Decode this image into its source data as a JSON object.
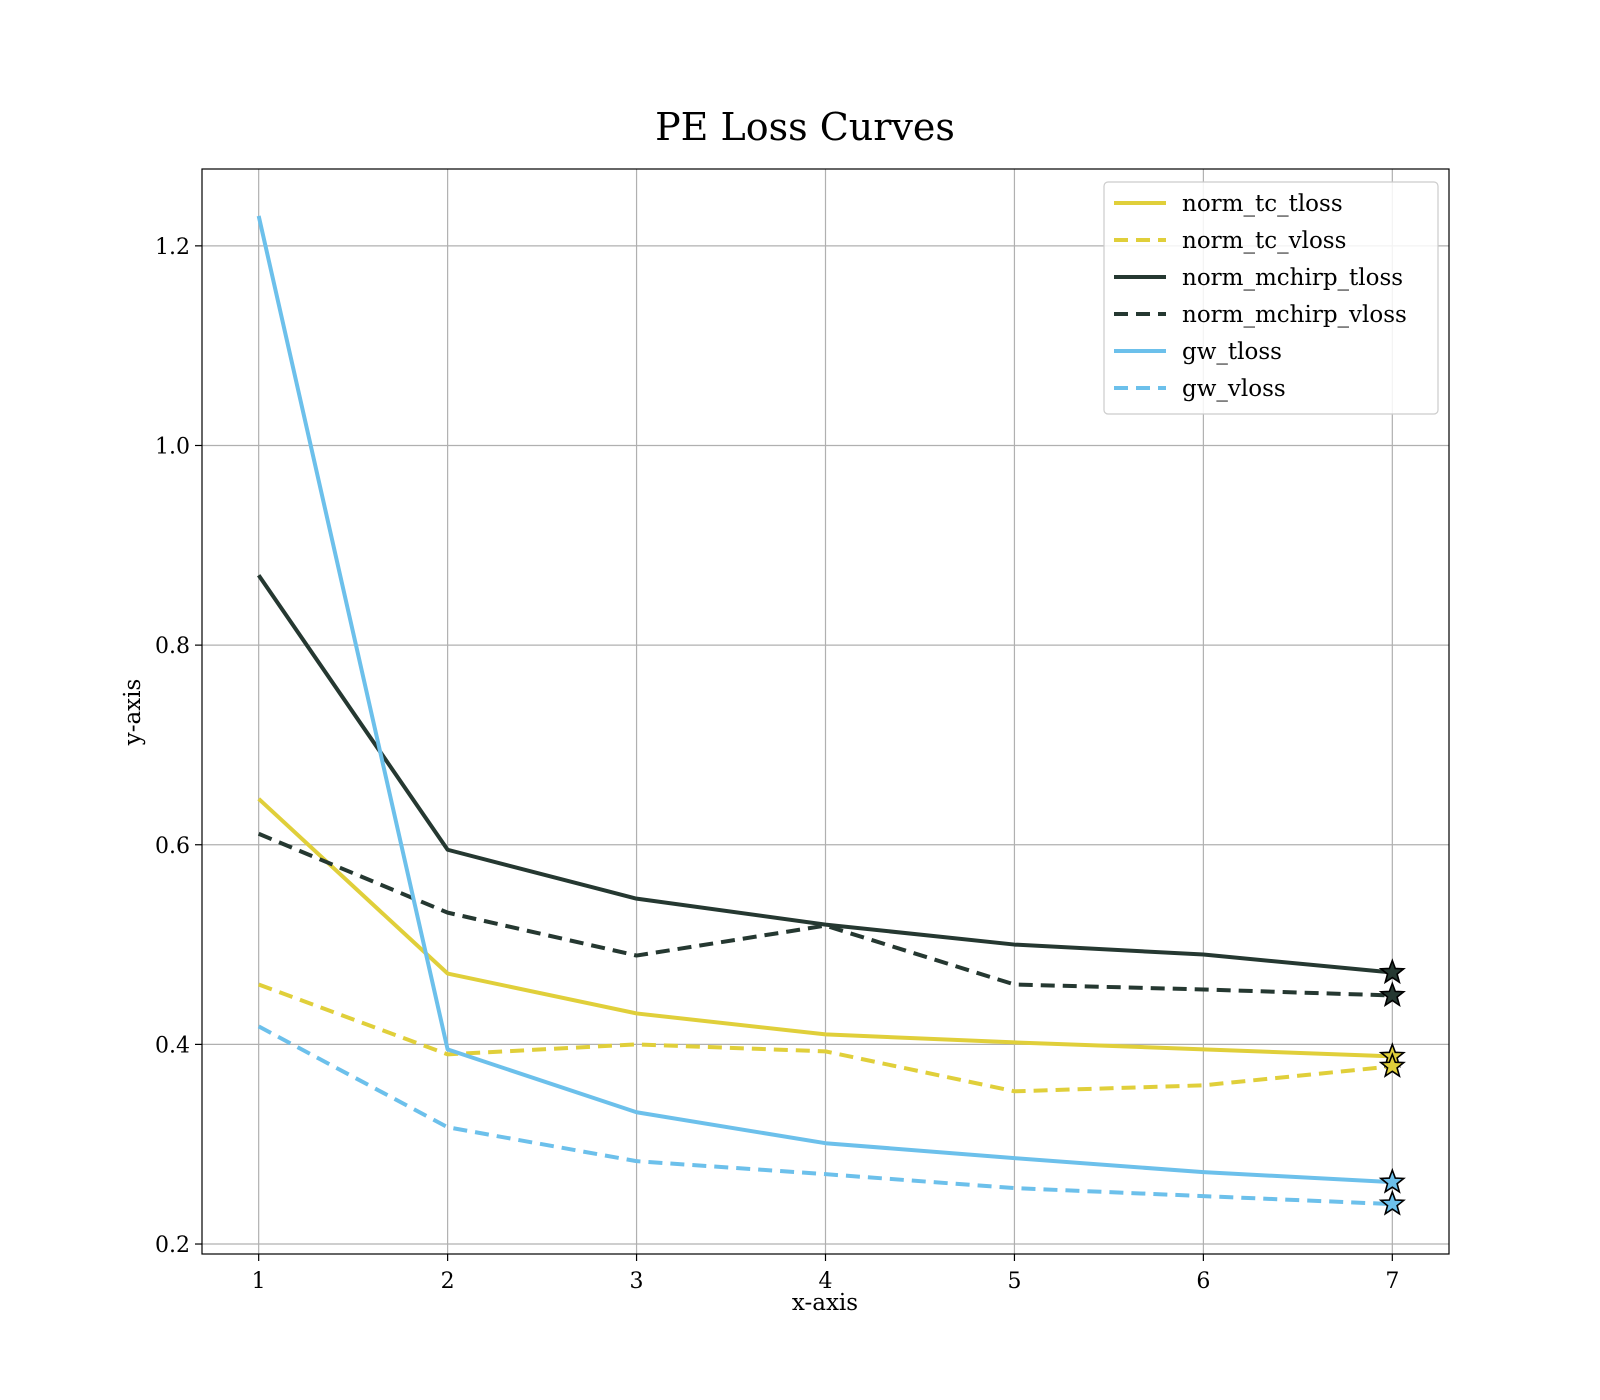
{
  "chart_data": {
    "type": "line",
    "title": "PE Loss Curves",
    "xlabel": "x-axis",
    "ylabel": "y-axis",
    "x": [
      1,
      2,
      3,
      4,
      5,
      6,
      7
    ],
    "xlim": [
      0.7,
      7.3
    ],
    "ylim": [
      0.19,
      1.277
    ],
    "xticks": [
      "1",
      "2",
      "3",
      "4",
      "5",
      "6",
      "7"
    ],
    "yticks": [
      "0.2",
      "0.4",
      "0.6",
      "0.8",
      "1.0",
      "1.2"
    ],
    "grid": true,
    "legend_position": "top-right",
    "final_point_marker": "star",
    "series": [
      {
        "name": "norm_tc_tloss",
        "color": "#e0cf3a",
        "dash": "solid",
        "values": [
          0.646,
          0.471,
          0.431,
          0.41,
          0.402,
          0.395,
          0.388
        ]
      },
      {
        "name": "norm_tc_vloss",
        "color": "#e0cf3a",
        "dash": "dashed",
        "values": [
          0.46,
          0.39,
          0.4,
          0.393,
          0.353,
          0.359,
          0.378
        ]
      },
      {
        "name": "norm_mchirp_tloss",
        "color": "#253831",
        "dash": "solid",
        "values": [
          0.87,
          0.595,
          0.546,
          0.52,
          0.5,
          0.49,
          0.472
        ]
      },
      {
        "name": "norm_mchirp_vloss",
        "color": "#253831",
        "dash": "dashed",
        "values": [
          0.611,
          0.532,
          0.489,
          0.519,
          0.46,
          0.455,
          0.449
        ]
      },
      {
        "name": "gw_tloss",
        "color": "#6cc0eb",
        "dash": "solid",
        "values": [
          1.23,
          0.395,
          0.332,
          0.301,
          0.286,
          0.272,
          0.262
        ]
      },
      {
        "name": "gw_vloss",
        "color": "#6cc0eb",
        "dash": "dashed",
        "values": [
          0.418,
          0.317,
          0.283,
          0.27,
          0.256,
          0.248,
          0.24
        ]
      }
    ]
  }
}
